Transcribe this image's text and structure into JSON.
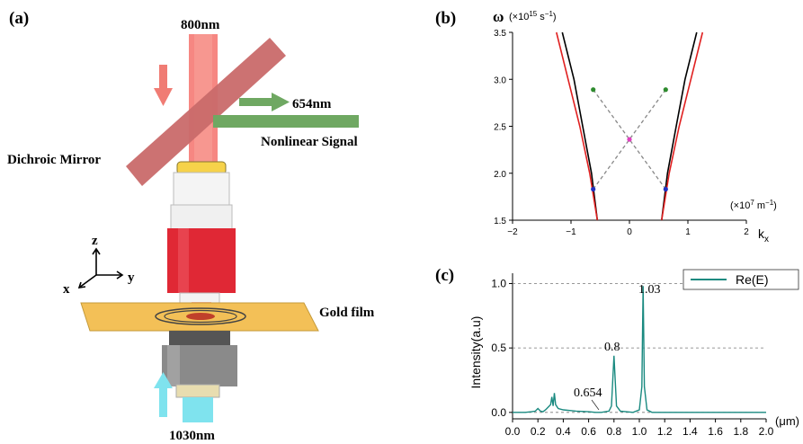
{
  "panel_a": {
    "label": "(a)",
    "beam_800": "800nm",
    "beam_654": "654nm",
    "nonlinear": "Nonlinear Signal",
    "mirror": "Dichroic Mirror",
    "gold": "Gold film",
    "beam_1030": "1030nm",
    "axis_z": "z",
    "axis_y": "y",
    "axis_x": "x",
    "colors": {
      "red_beam": "#f06a6a",
      "green_beam": "#6fa862",
      "mirror": "#c96a6a",
      "gold": "#f3c057",
      "cyan": "#7fe3ee"
    }
  },
  "panel_b": {
    "label": "(b)",
    "ylabel_symbol": "ω",
    "ylabel_unit_pre": "(×10",
    "ylabel_exp": "15",
    "ylabel_unit_post": " s",
    "ylabel_inv": "−1",
    "ylabel_close": ")",
    "xunit_pre": "(×10",
    "xunit_exp": "7",
    "xunit_post": " m",
    "xunit_inv": "−1",
    "xunit_close": ")",
    "xlabel_main": "k",
    "xlabel_sub": "x",
    "yticks": [
      "1.5",
      "2.0",
      "2.5",
      "3.0",
      "3.5"
    ],
    "xticks": [
      "−2",
      "−1",
      "0",
      "1",
      "2"
    ]
  },
  "chart_data": [
    {
      "type": "line",
      "title": "",
      "xlabel": "kx",
      "ylabel": "ω",
      "xlim": [
        -2,
        2
      ],
      "ylim": [
        1.5,
        3.5
      ],
      "series": [
        {
          "color": "#000000",
          "x": [
            -1.15,
            -0.95,
            -0.8,
            -0.65,
            -0.55
          ],
          "y": [
            3.5,
            3.0,
            2.5,
            2.0,
            1.5
          ]
        },
        {
          "color": "#e02020",
          "x": [
            -1.25,
            -1.05,
            -0.85,
            -0.68,
            -0.55
          ],
          "y": [
            3.5,
            3.0,
            2.5,
            2.0,
            1.5
          ]
        },
        {
          "color": "#000000",
          "x": [
            0.55,
            0.65,
            0.8,
            0.95,
            1.15
          ],
          "y": [
            1.5,
            2.0,
            2.5,
            3.0,
            3.5
          ]
        },
        {
          "color": "#e02020",
          "x": [
            0.55,
            0.68,
            0.85,
            1.05,
            1.25
          ],
          "y": [
            1.5,
            2.0,
            2.5,
            3.0,
            3.5
          ]
        }
      ],
      "points": [
        {
          "x": -0.62,
          "y": 2.89,
          "color": "#2e8b2e"
        },
        {
          "x": 0.62,
          "y": 2.89,
          "color": "#2e8b2e"
        },
        {
          "x": -0.62,
          "y": 1.83,
          "color": "#2030c0"
        },
        {
          "x": 0.62,
          "y": 1.83,
          "color": "#2030c0"
        },
        {
          "x": 0.0,
          "y": 2.36,
          "color": "#e040c0"
        }
      ]
    },
    {
      "type": "line",
      "title": "",
      "xlabel": "(μm)",
      "ylabel": "Intensity(a.u)",
      "xlim": [
        0.0,
        2.0
      ],
      "ylim": [
        -0.05,
        1.08
      ],
      "xticks": [
        "0.0",
        "0.2",
        "0.4",
        "0.6",
        "0.8",
        "1.0",
        "1.2",
        "1.4",
        "1.6",
        "1.8",
        "2.0"
      ],
      "yticks": [
        "0.0",
        "0.5",
        "1.0"
      ],
      "legend": "top-right",
      "series": [
        {
          "name": "Re(E)",
          "color": "#1a8a80",
          "x": [
            0.0,
            0.1,
            0.15,
            0.18,
            0.2,
            0.22,
            0.24,
            0.26,
            0.28,
            0.3,
            0.31,
            0.32,
            0.33,
            0.34,
            0.36,
            0.4,
            0.5,
            0.6,
            0.654,
            0.7,
            0.76,
            0.78,
            0.8,
            0.82,
            0.85,
            0.95,
            1.0,
            1.02,
            1.03,
            1.04,
            1.06,
            1.1,
            1.3,
            1.6,
            2.0
          ],
          "y": [
            0.0,
            0.0,
            0.005,
            0.01,
            0.03,
            0.01,
            0.005,
            0.02,
            0.04,
            0.06,
            0.12,
            0.05,
            0.15,
            0.06,
            0.03,
            0.02,
            0.01,
            0.005,
            0.0,
            0.0,
            0.01,
            0.05,
            0.44,
            0.05,
            0.01,
            0.0,
            0.02,
            0.2,
            0.98,
            0.2,
            0.02,
            0.0,
            0.0,
            0.0,
            0.0
          ]
        }
      ],
      "annotations": [
        {
          "text": "1.03",
          "x": 1.03,
          "y": 1.0
        },
        {
          "text": "0.8",
          "x": 0.8,
          "y": 0.5
        },
        {
          "text": "0.654",
          "x": 0.654,
          "y": 0.0
        }
      ]
    }
  ],
  "panel_c": {
    "label": "(c)",
    "ylabel": "Intensity(a.u)",
    "xunit": "(μm)",
    "legend": "Re(E)",
    "ann_103": "1.03",
    "ann_08": "0.8",
    "ann_0654": "0.654"
  }
}
